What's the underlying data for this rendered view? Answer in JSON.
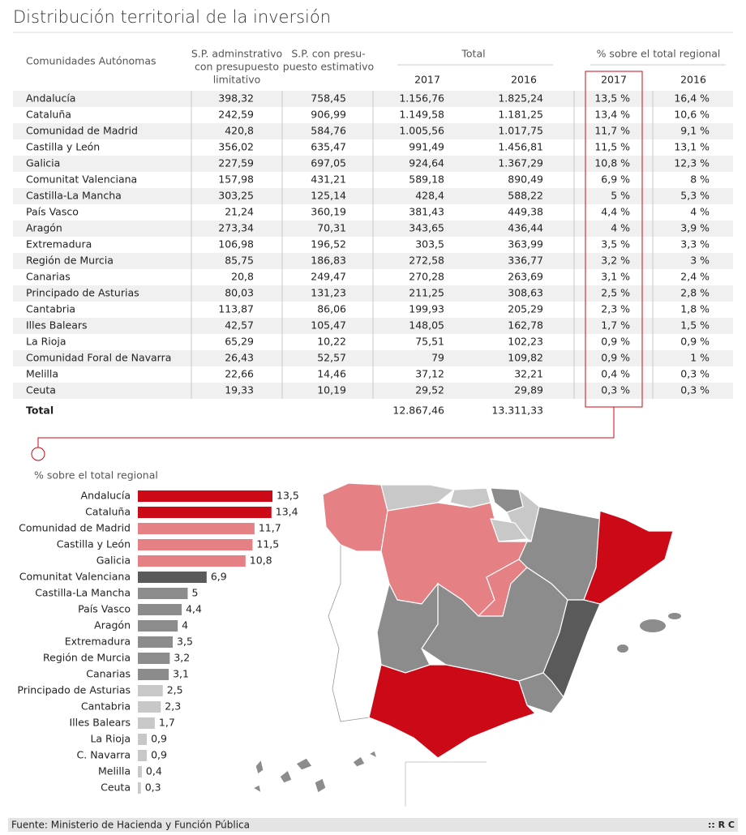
{
  "title": "Distribución territorial de la inversión",
  "table": {
    "columns": {
      "region": "Comunidades Autónomas",
      "limitativo": [
        "S.P. adminstrativo",
        "con presupuesto",
        "limitativo"
      ],
      "estimativo": [
        "S.P. con presu-",
        "puesto estimativo"
      ],
      "total": "Total",
      "total_years": [
        "2017",
        "2016"
      ],
      "pct": "% sobre el total regional",
      "pct_years": [
        "2017",
        "2016"
      ]
    },
    "rows": [
      [
        "Andalucía",
        "398,32",
        "758,45",
        "1.156,76",
        "1.825,24",
        "13,5 %",
        "16,4 %"
      ],
      [
        "Cataluña",
        "242,59",
        "906,99",
        "1.149,58",
        "1.181,25",
        "13,4 %",
        "10,6 %"
      ],
      [
        "Comunidad de Madrid",
        "420,8",
        "584,76",
        "1.005,56",
        "1.017,75",
        "11,7 %",
        "9,1 %"
      ],
      [
        "Castilla y León",
        "356,02",
        "635,47",
        "991,49",
        "1.456,81",
        "11,5 %",
        "13,1 %"
      ],
      [
        "Galicia",
        "227,59",
        "697,05",
        "924,64",
        "1.367,29",
        "10,8 %",
        "12,3 %"
      ],
      [
        "Comunitat Valenciana",
        "157,98",
        "431,21",
        "589,18",
        "890,49",
        "6,9 %",
        "8 %"
      ],
      [
        "Castilla-La Mancha",
        "303,25",
        "125,14",
        "428,4",
        "588,22",
        "5 %",
        "5,3 %"
      ],
      [
        "País Vasco",
        "21,24",
        "360,19",
        "381,43",
        "449,38",
        "4,4 %",
        "4 %"
      ],
      [
        "Aragón",
        "273,34",
        "70,31",
        "343,65",
        "436,44",
        "4 %",
        "3,9 %"
      ],
      [
        "Extremadura",
        "106,98",
        "196,52",
        "303,5",
        "363,99",
        "3,5 %",
        "3,3 %"
      ],
      [
        "Región de Murcia",
        "85,75",
        "186,83",
        "272,58",
        "336,77",
        "3,2 %",
        "3 %"
      ],
      [
        "Canarias",
        "20,8",
        "249,47",
        "270,28",
        "263,69",
        "3,1 %",
        "2,4 %"
      ],
      [
        "Principado de Asturias",
        "80,03",
        "131,23",
        "211,25",
        "308,63",
        "2,5 %",
        "2,8 %"
      ],
      [
        "Cantabria",
        "113,87",
        "86,06",
        "199,93",
        "205,29",
        "2,3 %",
        "1,8 %"
      ],
      [
        "Illes Balears",
        "42,57",
        "105,47",
        "148,05",
        "162,78",
        "1,7 %",
        "1,5 %"
      ],
      [
        "La Rioja",
        "65,29",
        "10,22",
        "75,51",
        "102,23",
        "0,9 %",
        "0,9 %"
      ],
      [
        "Comunidad Foral de Navarra",
        "26,43",
        "52,57",
        "79",
        "109,82",
        "0,9 %",
        "1 %"
      ],
      [
        "Melilla",
        "22,66",
        "14,46",
        "37,12",
        "32,21",
        "0,4 %",
        "0,3 %"
      ],
      [
        "Ceuta",
        "19,33",
        "10,19",
        "29,52",
        "29,89",
        "0,3 %",
        "0,3 %"
      ]
    ],
    "total_row": [
      "Total",
      "12.867,46",
      "13.311,33"
    ]
  },
  "chart_data": {
    "type": "bar",
    "orientation": "horizontal",
    "title": "% sobre el total regional",
    "categories": [
      "Andalucía",
      "Cataluña",
      "Comunidad de Madrid",
      "Castilla y León",
      "Galicia",
      "Comunitat Valenciana",
      "Castilla-La Mancha",
      "País Vasco",
      "Aragón",
      "Extremadura",
      "Región de Murcia",
      "Canarias",
      "Principado de Asturias",
      "Cantabria",
      "Illes Balears",
      "La Rioja",
      "C. Navarra",
      "Melilla",
      "Ceuta"
    ],
    "values": [
      13.5,
      13.4,
      11.7,
      11.5,
      10.8,
      6.9,
      5,
      4.4,
      4,
      3.5,
      3.2,
      3.1,
      2.5,
      2.3,
      1.7,
      0.9,
      0.9,
      0.4,
      0.3
    ],
    "value_labels": [
      "13,5",
      "13,4",
      "11,7",
      "11,5",
      "10,8",
      "6,9",
      "5",
      "4,4",
      "4",
      "3,5",
      "3,2",
      "3,1",
      "2,5",
      "2,3",
      "1,7",
      "0,9",
      "0,9",
      "0,4",
      "0,3"
    ],
    "colors": [
      "#cc0a17",
      "#cc0a17",
      "#e58084",
      "#e58084",
      "#e58084",
      "#5a5a5a",
      "#8c8c8c",
      "#8c8c8c",
      "#8c8c8c",
      "#8c8c8c",
      "#8c8c8c",
      "#8c8c8c",
      "#c8c8c8",
      "#c8c8c8",
      "#c8c8c8",
      "#c8c8c8",
      "#c8c8c8",
      "#c8c8c8",
      "#c8c8c8"
    ],
    "xlim": [
      0,
      13.5
    ]
  },
  "footer": {
    "source": "Fuente: Ministerio de Hacienda y Función Pública",
    "brand": ":: R C"
  }
}
